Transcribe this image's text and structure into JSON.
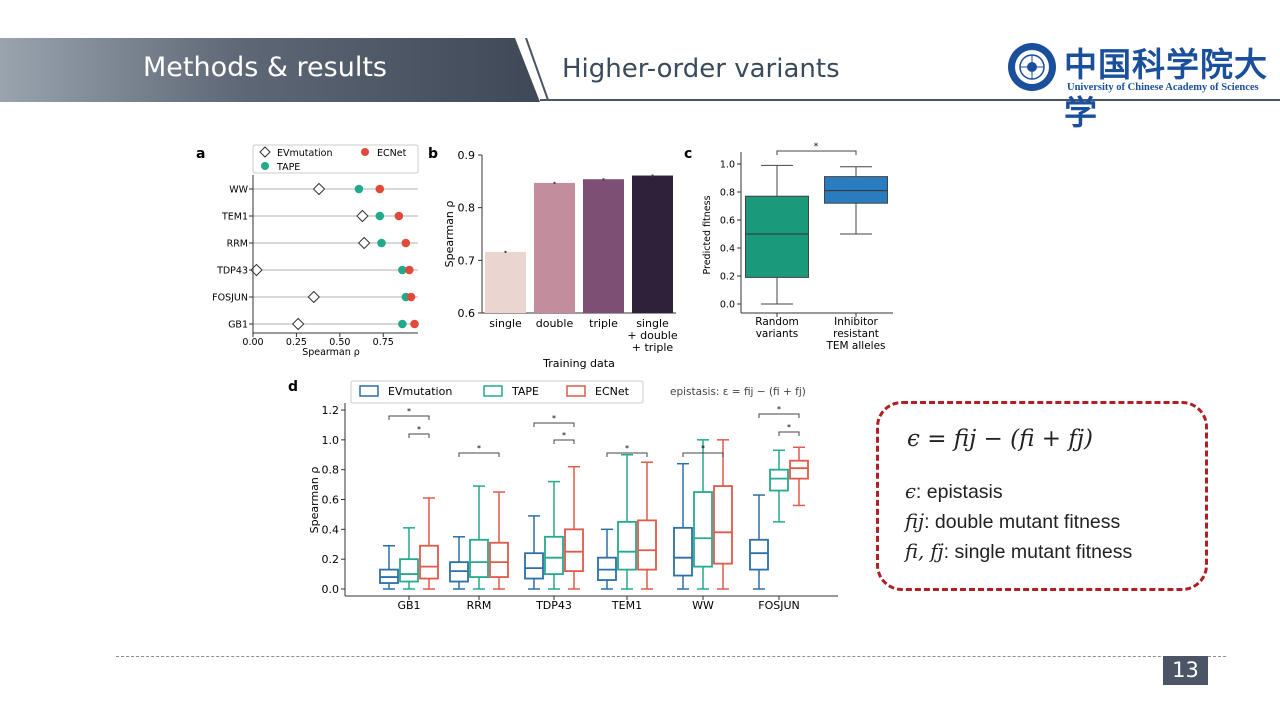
{
  "header": {
    "section_title": "Methods & results",
    "subtitle": "Higher-order variants",
    "logo_cn": "中国科学院大学",
    "logo_en": "University of Chinese Academy of Sciences",
    "colors": {
      "bar_dark": "#4b5566",
      "bar_light": "#9aa3ae",
      "logo_blue": "#1a4f9c"
    }
  },
  "panels": {
    "a": "a",
    "b": "b",
    "c": "c",
    "d": "d"
  },
  "chart_data": [
    {
      "type": "scatter",
      "panel": "a",
      "categories": [
        "WW",
        "TEM1",
        "RRM",
        "TDP43",
        "FOSJUN",
        "GB1"
      ],
      "series": [
        {
          "name": "EVmutation",
          "values": [
            0.38,
            0.63,
            0.64,
            0.02,
            0.35,
            0.26
          ],
          "color": "#ffffff",
          "marker": "diamond"
        },
        {
          "name": "TAPE",
          "values": [
            0.61,
            0.73,
            0.74,
            0.86,
            0.88,
            0.86
          ],
          "color": "#20a98a",
          "marker": "circle"
        },
        {
          "name": "ECNet",
          "values": [
            0.73,
            0.84,
            0.88,
            0.9,
            0.91,
            0.93
          ],
          "color": "#e04a3a",
          "marker": "circle"
        }
      ],
      "xlabel": "Spearman ρ",
      "xticks": [
        "0.00",
        "0.25",
        "0.50",
        "0.75"
      ],
      "xlim": [
        0,
        0.95
      ]
    },
    {
      "type": "bar",
      "panel": "b",
      "categories": [
        "single",
        "double",
        "triple",
        "single\n+ double\n+ triple"
      ],
      "values": [
        0.716,
        0.847,
        0.854,
        0.861
      ],
      "colors": [
        "#ead5d1",
        "#c28d9d",
        "#7d4f74",
        "#2e2139"
      ],
      "xlabel": "Training data",
      "ylabel": "Spearman ρ",
      "yticks": [
        "0.6",
        "0.7",
        "0.8",
        "0.9"
      ],
      "ylim": [
        0.6,
        0.9
      ]
    },
    {
      "type": "box",
      "panel": "c",
      "categories": [
        "Random\nvariants",
        "Inhibitor\nresistant\nTEM alleles"
      ],
      "boxes": [
        {
          "min": 0.0,
          "q1": 0.19,
          "median": 0.5,
          "q3": 0.77,
          "max": 0.99,
          "color": "#1a9a7a"
        },
        {
          "min": 0.5,
          "q1": 0.72,
          "median": 0.81,
          "q3": 0.91,
          "max": 0.98,
          "color": "#2b7bbf"
        }
      ],
      "significance": "*",
      "ylabel": "Predicted fitness",
      "yticks": [
        "0.0",
        "0.2",
        "0.4",
        "0.6",
        "0.8",
        "1.0"
      ],
      "ylim": [
        0,
        1.0
      ]
    },
    {
      "type": "box",
      "panel": "d",
      "categories": [
        "GB1",
        "RRM",
        "TDP43",
        "TEM1",
        "WW",
        "FOSJUN"
      ],
      "series": [
        {
          "name": "EVmutation",
          "color": "#2d6fa8",
          "boxes": [
            {
              "min": 0.0,
              "q1": 0.04,
              "median": 0.08,
              "q3": 0.13,
              "max": 0.29
            },
            {
              "min": 0.0,
              "q1": 0.05,
              "median": 0.12,
              "q3": 0.18,
              "max": 0.35
            },
            {
              "min": 0.0,
              "q1": 0.07,
              "median": 0.14,
              "q3": 0.24,
              "max": 0.49
            },
            {
              "min": 0.0,
              "q1": 0.06,
              "median": 0.13,
              "q3": 0.21,
              "max": 0.4
            },
            {
              "min": 0.0,
              "q1": 0.09,
              "median": 0.21,
              "q3": 0.41,
              "max": 0.84
            },
            {
              "min": 0.0,
              "q1": 0.13,
              "median": 0.24,
              "q3": 0.33,
              "max": 0.63
            }
          ]
        },
        {
          "name": "TAPE",
          "color": "#26a98c",
          "boxes": [
            {
              "min": 0.0,
              "q1": 0.05,
              "median": 0.1,
              "q3": 0.2,
              "max": 0.41
            },
            {
              "min": 0.0,
              "q1": 0.08,
              "median": 0.18,
              "q3": 0.33,
              "max": 0.69
            },
            {
              "min": 0.0,
              "q1": 0.1,
              "median": 0.21,
              "q3": 0.35,
              "max": 0.72
            },
            {
              "min": 0.0,
              "q1": 0.13,
              "median": 0.25,
              "q3": 0.45,
              "max": 0.9
            },
            {
              "min": 0.0,
              "q1": 0.15,
              "median": 0.34,
              "q3": 0.65,
              "max": 1.0
            },
            {
              "min": 0.45,
              "q1": 0.66,
              "median": 0.74,
              "q3": 0.8,
              "max": 0.93
            }
          ]
        },
        {
          "name": "ECNet",
          "color": "#df5a4a",
          "boxes": [
            {
              "min": 0.0,
              "q1": 0.07,
              "median": 0.15,
              "q3": 0.29,
              "max": 0.61
            },
            {
              "min": 0.0,
              "q1": 0.08,
              "median": 0.18,
              "q3": 0.31,
              "max": 0.65
            },
            {
              "min": 0.0,
              "q1": 0.12,
              "median": 0.25,
              "q3": 0.4,
              "max": 0.82
            },
            {
              "min": 0.0,
              "q1": 0.13,
              "median": 0.26,
              "q3": 0.46,
              "max": 0.85
            },
            {
              "min": 0.0,
              "q1": 0.17,
              "median": 0.38,
              "q3": 0.69,
              "max": 1.0
            },
            {
              "min": 0.56,
              "q1": 0.74,
              "median": 0.81,
              "q3": 0.86,
              "max": 0.95
            }
          ]
        }
      ],
      "significance": [
        {
          "group": "GB1",
          "pairs": [
            "EVmutation-ECNet",
            "TAPE-ECNet"
          ]
        },
        {
          "group": "RRM",
          "pairs": [
            "EVmutation-ECNet"
          ]
        },
        {
          "group": "TDP43",
          "pairs": [
            "EVmutation-ECNet",
            "TAPE-ECNet"
          ]
        },
        {
          "group": "TEM1",
          "pairs": [
            "EVmutation-ECNet"
          ]
        },
        {
          "group": "WW",
          "pairs": [
            "EVmutation-ECNet"
          ]
        },
        {
          "group": "FOSJUN",
          "pairs": [
            "EVmutation-ECNet",
            "TAPE-ECNet"
          ]
        }
      ],
      "ylabel": "Spearman ρ",
      "yticks": [
        "0.0",
        "0.2",
        "0.4",
        "0.6",
        "0.8",
        "1.0",
        "1.2"
      ],
      "ylim": [
        0,
        1.2
      ],
      "annotation": "epistasis: ε = fij − (fi + fj)"
    }
  ],
  "equation_box": {
    "main": "ϵ = fij − (fi + fj)",
    "lines": [
      {
        "symbol": "ϵ",
        "text": ": epistasis"
      },
      {
        "symbol": "fij",
        "text": ": double mutant fitness"
      },
      {
        "symbol": "fi, fj",
        "text": ": single mutant fitness"
      }
    ]
  },
  "footer": {
    "page_number": "13"
  }
}
